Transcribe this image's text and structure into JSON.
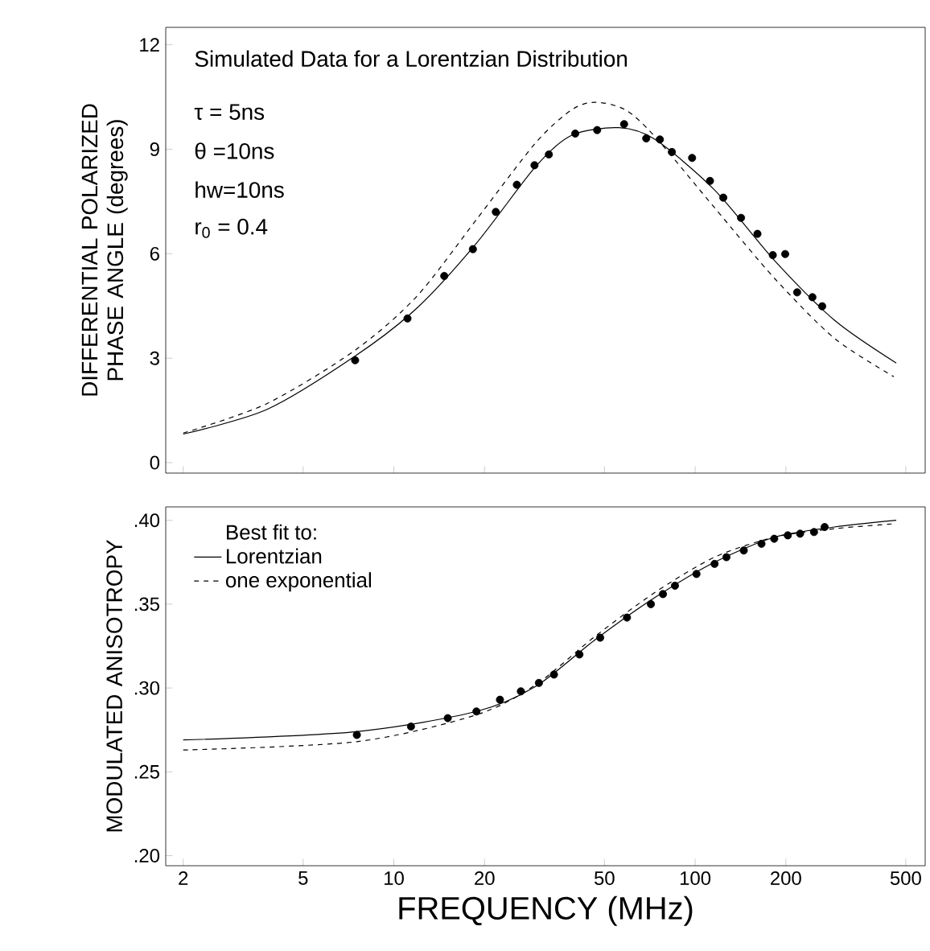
{
  "chart_data": [
    {
      "type": "line",
      "title": "Simulated Data for a Lorentzian Distribution",
      "ylabel": "DIFFERENTIAL POLARIZED PHASE ANGLE (degrees)",
      "annotations": [
        "τ = 5ns",
        "θ =10ns",
        "hw=10ns",
        "r$_{0}$ = 0.4"
      ],
      "log": "x",
      "xlim": [
        1.75,
        580
      ],
      "xticks": [
        2,
        5,
        10,
        20,
        50,
        100,
        200,
        500
      ],
      "ylim": [
        -0.3,
        12.5
      ],
      "yticks": [
        0,
        3,
        6,
        9,
        12
      ],
      "tick_labels": "y",
      "series": [
        {
          "type": "scatter",
          "marker": "circle",
          "color": "#000000",
          "x": [
            7.44,
            11.1,
            14.7,
            18.3,
            21.8,
            25.6,
            29.3,
            32.7,
            40.0,
            47.3,
            58.1,
            68.8,
            76.4,
            83.7,
            97.7,
            112,
            124,
            142,
            161,
            181,
            199,
            218,
            245,
            264
          ],
          "values": [
            2.94,
            4.14,
            5.36,
            6.13,
            7.2,
            7.98,
            8.54,
            8.85,
            9.45,
            9.55,
            9.72,
            9.31,
            9.28,
            8.92,
            8.75,
            8.09,
            7.61,
            7.03,
            6.57,
            5.96,
            5.99,
            4.89,
            4.75,
            4.49
          ]
        },
        {
          "line_style": "solid",
          "color": "#000000",
          "x": [
            2,
            3.8,
            7.44,
            11.9,
            18.8,
            29.6,
            38.9,
            55.9,
            73.6,
            116,
            184,
            290,
            465
          ],
          "values": [
            0.82,
            1.53,
            3.06,
            4.43,
            6.3,
            8.51,
            9.4,
            9.62,
            9.28,
            7.83,
            5.79,
            4.09,
            2.86
          ]
        },
        {
          "line_style": "dashed",
          "color": "#000000",
          "x": [
            2,
            3.8,
            7.44,
            11.9,
            18.8,
            29.6,
            38.9,
            46.7,
            58.7,
            73.6,
            116,
            184,
            290,
            456
          ],
          "values": [
            0.85,
            1.7,
            3.23,
            4.77,
            6.98,
            9.19,
            10.13,
            10.35,
            10.13,
            9.36,
            7.32,
            5.28,
            3.57,
            2.47
          ]
        }
      ]
    },
    {
      "type": "line",
      "xlabel": "FREQUENCY (MHz)",
      "ylabel": "MODULATED ANISOTROPY",
      "legend": "top left",
      "legend_title": "Best fit to:",
      "log": "x",
      "xlim": [
        1.75,
        580
      ],
      "xticks": [
        2,
        5,
        10,
        20,
        50,
        100,
        200,
        500
      ],
      "ylim": [
        0.194,
        0.408
      ],
      "yticks": [
        {
          "value": 0.2,
          "label": ".20"
        },
        {
          "value": 0.25,
          "label": ".25"
        },
        {
          "value": 0.3,
          "label": ".30"
        },
        {
          "value": 0.35,
          "label": ".35"
        },
        {
          "value": 0.4,
          "label": ".40"
        }
      ],
      "series": [
        {
          "type": "scatter",
          "marker": "circle",
          "color": "#000000",
          "x": [
            7.54,
            11.4,
            15.1,
            18.8,
            22.5,
            26.4,
            30.3,
            34.0,
            41.3,
            48.4,
            59.4,
            71.3,
            78.2,
            85.7,
            101,
            116,
            127,
            145,
            166,
            183,
            203,
            223,
            248,
            269
          ],
          "values": [
            0.272,
            0.277,
            0.282,
            0.286,
            0.293,
            0.298,
            0.303,
            0.308,
            0.32,
            0.33,
            0.342,
            0.35,
            0.356,
            0.361,
            0.368,
            0.374,
            0.378,
            0.382,
            0.386,
            0.389,
            0.391,
            0.392,
            0.393,
            0.396
          ]
        },
        {
          "name": "Lorentzian",
          "line_style": "solid",
          "color": "#000000",
          "x": [
            2,
            7.54,
            18.8,
            29.6,
            46.7,
            73.6,
            116,
            184,
            290,
            465
          ],
          "values": [
            0.269,
            0.274,
            0.286,
            0.301,
            0.329,
            0.354,
            0.375,
            0.39,
            0.396,
            0.4
          ]
        },
        {
          "name": "one exponential",
          "line_style": "dashed",
          "color": "#000000",
          "x": [
            2,
            7.54,
            18.8,
            29.6,
            46.7,
            73.6,
            116,
            184,
            290,
            465
          ],
          "values": [
            0.263,
            0.268,
            0.284,
            0.302,
            0.331,
            0.357,
            0.378,
            0.39,
            0.395,
            0.398
          ]
        }
      ]
    }
  ]
}
